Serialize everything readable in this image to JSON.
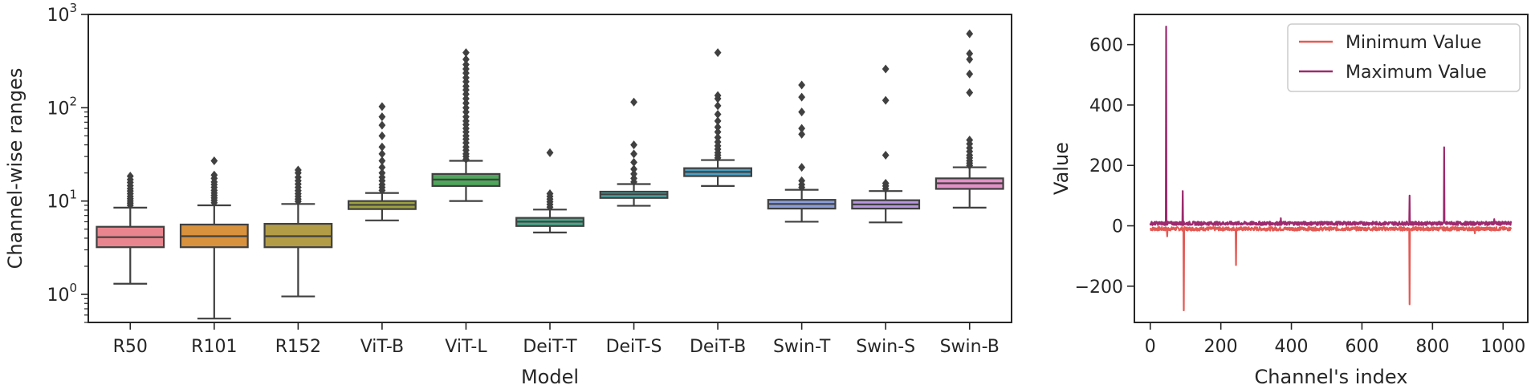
{
  "chart_data": [
    {
      "type": "box",
      "title": "",
      "xlabel": "Model",
      "ylabel": "Channel-wise ranges",
      "yscale": "log",
      "ylim": [
        0.5,
        1000
      ],
      "yticks": [
        {
          "value": 1,
          "base": "10",
          "exp": "0"
        },
        {
          "value": 10,
          "base": "10",
          "exp": "1"
        },
        {
          "value": 100,
          "base": "10",
          "exp": "2"
        },
        {
          "value": 1000,
          "base": "10",
          "exp": "3"
        }
      ],
      "categories": [
        "R50",
        "R101",
        "R152",
        "ViT-B",
        "ViT-L",
        "DeiT-T",
        "DeiT-S",
        "DeiT-B",
        "Swin-T",
        "Swin-S",
        "Swin-B"
      ],
      "colors": [
        "#e8858e",
        "#d8913c",
        "#b29c45",
        "#9ea13f",
        "#4ea75a",
        "#4aa68a",
        "#4aa7a3",
        "#4a9fc2",
        "#8a9dd8",
        "#b896e0",
        "#e490c8"
      ],
      "boxes": [
        {
          "whisker_low": 1.3,
          "q1": 3.2,
          "median": 4.1,
          "q3": 5.3,
          "whisker_high": 8.5,
          "fliers": [
            9,
            9.5,
            10,
            10.6,
            11.2,
            12,
            12.8,
            13.6,
            14.6,
            15.8,
            17,
            18.5
          ]
        },
        {
          "whisker_low": 0.55,
          "q1": 3.2,
          "median": 4.2,
          "q3": 5.6,
          "whisker_high": 9,
          "fliers": [
            9.6,
            10.2,
            10.8,
            11.5,
            12.2,
            13,
            14,
            15,
            16,
            17.5,
            19,
            27
          ]
        },
        {
          "whisker_low": 0.95,
          "q1": 3.2,
          "median": 4.2,
          "q3": 5.7,
          "whisker_high": 9.3,
          "fliers": [
            9.9,
            10.5,
            11.2,
            12,
            12.9,
            14,
            15.2,
            16.5,
            18,
            20,
            21.5
          ]
        },
        {
          "whisker_low": 6.2,
          "q1": 8.2,
          "median": 9.1,
          "q3": 10,
          "whisker_high": 12.2,
          "fliers": [
            13,
            14,
            15,
            16.5,
            18,
            20,
            23,
            27,
            32,
            38,
            50,
            65,
            80,
            103
          ]
        },
        {
          "whisker_low": 10,
          "q1": 14.5,
          "median": 17,
          "q3": 19.5,
          "whisker_high": 27,
          "fliers": [
            28,
            30,
            32,
            35,
            38,
            42,
            46,
            50,
            55,
            60,
            66,
            72,
            80,
            90,
            100,
            112,
            125,
            140,
            155,
            170,
            190,
            210,
            235,
            260,
            290,
            330,
            390
          ]
        },
        {
          "whisker_low": 4.6,
          "q1": 5.4,
          "median": 6,
          "q3": 6.6,
          "whisker_high": 8.1,
          "fliers": [
            8.6,
            9.2,
            9.8,
            10.5,
            11.2,
            12,
            33
          ]
        },
        {
          "whisker_low": 8.9,
          "q1": 10.8,
          "median": 11.8,
          "q3": 12.6,
          "whisker_high": 15.2,
          "fliers": [
            16,
            17.5,
            19.5,
            22,
            26,
            32,
            40,
            115
          ]
        },
        {
          "whisker_low": 14.5,
          "q1": 18.5,
          "median": 20.5,
          "q3": 22.5,
          "whisker_high": 27.5,
          "fliers": [
            29,
            31,
            33,
            36,
            39,
            43,
            48,
            55,
            62,
            72,
            85,
            105,
            125,
            135,
            390
          ]
        },
        {
          "whisker_low": 6,
          "q1": 8.3,
          "median": 9.3,
          "q3": 10.3,
          "whisker_high": 13.2,
          "fliers": [
            14,
            15,
            16.5,
            23,
            52,
            60,
            90,
            130,
            175
          ]
        },
        {
          "whisker_low": 5.9,
          "q1": 8.3,
          "median": 9.2,
          "q3": 10.2,
          "whisker_high": 12.8,
          "fliers": [
            13.5,
            14.5,
            15.5,
            31,
            120,
            260
          ]
        },
        {
          "whisker_low": 8.5,
          "q1": 13.5,
          "median": 15.5,
          "q3": 17.5,
          "whisker_high": 23,
          "fliers": [
            24,
            25.5,
            27,
            29,
            31,
            34,
            37,
            41,
            45,
            145,
            230,
            330,
            380,
            620
          ]
        }
      ]
    },
    {
      "type": "line",
      "title": "",
      "xlabel": "Channel's index",
      "ylabel": "Value",
      "xlim": [
        -45,
        1070
      ],
      "ylim": [
        -320,
        700
      ],
      "xticks": [
        0,
        200,
        400,
        600,
        800,
        1000
      ],
      "yticks": [
        -200,
        0,
        200,
        400,
        600
      ],
      "ytick_labels": [
        "−200",
        "0",
        "200",
        "400",
        "600"
      ],
      "legend_position": "upper right",
      "n_points": 1024,
      "series": [
        {
          "name": "Minimum Value",
          "color": "#e35a55",
          "baseline": -10,
          "spikes": [
            [
              48,
              -35
            ],
            [
              95,
              -280
            ],
            [
              243,
              -130
            ],
            [
              735,
              -260
            ],
            [
              920,
              -25
            ]
          ]
        },
        {
          "name": "Maximum Value",
          "color": "#9c2a6e",
          "baseline": 8,
          "spikes": [
            [
              45,
              660
            ],
            [
              92,
              115
            ],
            [
              370,
              25
            ],
            [
              735,
              100
            ],
            [
              833,
              260
            ],
            [
              975,
              22
            ]
          ]
        }
      ]
    }
  ]
}
